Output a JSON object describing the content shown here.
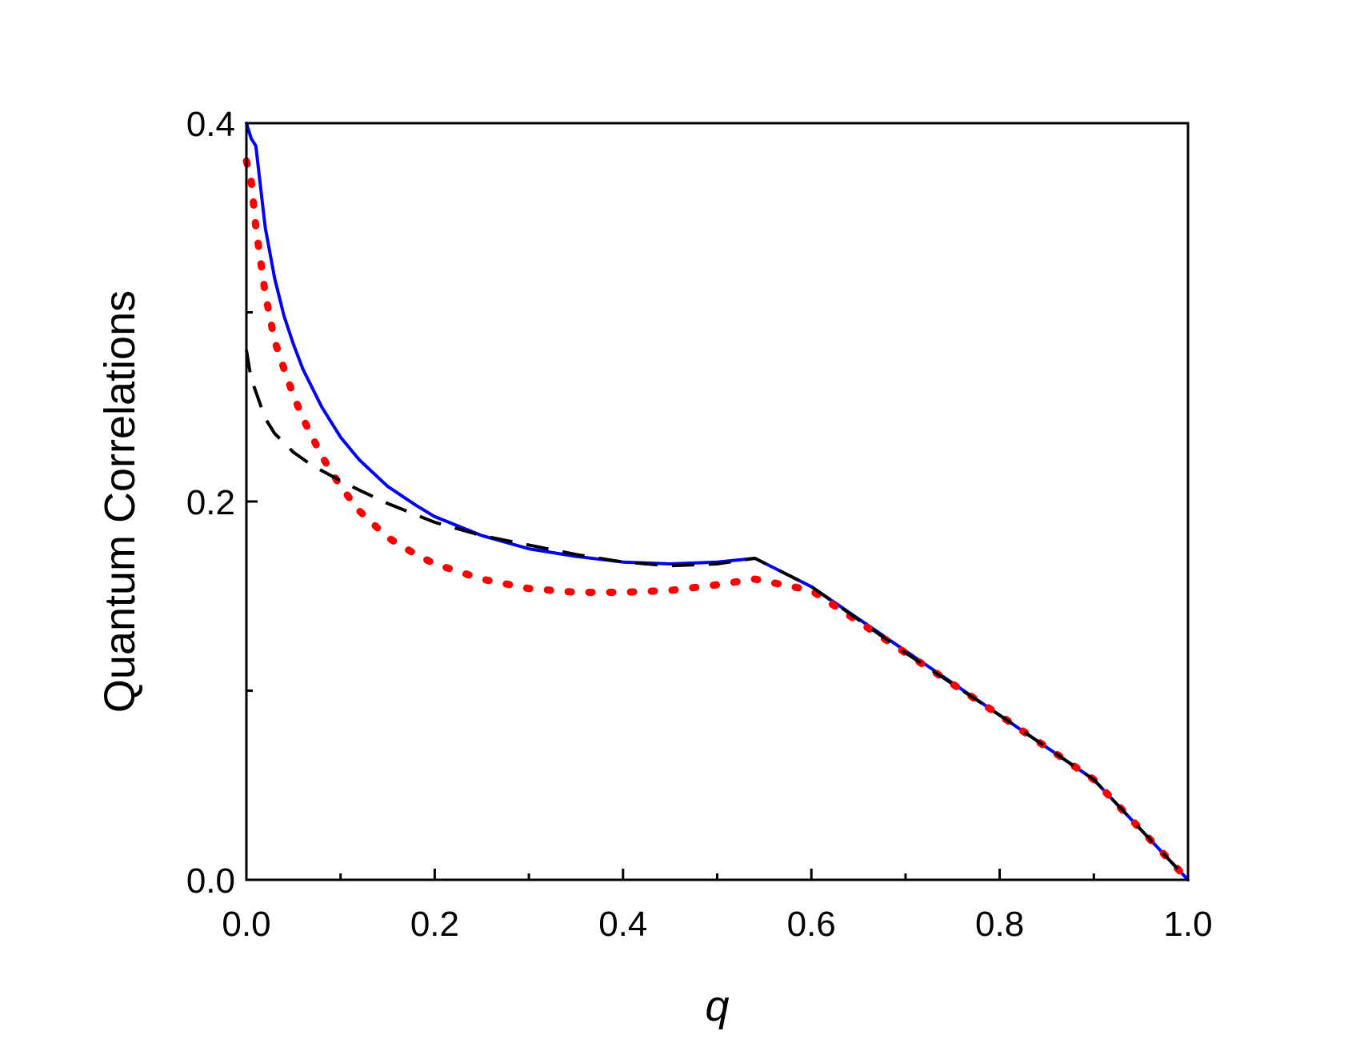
{
  "chart_data": {
    "type": "line",
    "title": "",
    "xlabel": "q",
    "ylabel": "Quantum Correlations",
    "xlim": [
      0.0,
      1.0
    ],
    "ylim": [
      0.0,
      0.4
    ],
    "x_ticks": [
      "0.0",
      "0.2",
      "0.4",
      "0.6",
      "0.8",
      "1.0"
    ],
    "x_tick_values": [
      0.0,
      0.2,
      0.4,
      0.6,
      0.8,
      1.0
    ],
    "y_ticks": [
      "0.0",
      "0.2",
      "0.4"
    ],
    "y_tick_values": [
      0.0,
      0.2,
      0.4
    ],
    "grid": false,
    "legend": "none",
    "series": [
      {
        "style": "solid",
        "color": "#0000ff",
        "x": [
          0.0,
          0.005,
          0.01,
          0.02,
          0.03,
          0.04,
          0.05,
          0.06,
          0.08,
          0.1,
          0.12,
          0.15,
          0.18,
          0.2,
          0.25,
          0.3,
          0.35,
          0.4,
          0.45,
          0.5,
          0.54,
          0.6,
          0.7,
          0.8,
          0.9,
          1.0
        ],
        "y": [
          0.4,
          0.392,
          0.388,
          0.345,
          0.318,
          0.298,
          0.283,
          0.27,
          0.25,
          0.234,
          0.222,
          0.208,
          0.198,
          0.192,
          0.182,
          0.175,
          0.171,
          0.168,
          0.167,
          0.168,
          0.17,
          0.155,
          0.121,
          0.087,
          0.053,
          0.0
        ]
      },
      {
        "style": "dotted",
        "color": "#ff0000",
        "x": [
          0.0,
          0.005,
          0.01,
          0.02,
          0.03,
          0.04,
          0.05,
          0.06,
          0.08,
          0.1,
          0.12,
          0.15,
          0.18,
          0.2,
          0.25,
          0.3,
          0.35,
          0.4,
          0.45,
          0.5,
          0.54,
          0.6,
          0.7,
          0.8,
          0.9,
          1.0
        ],
        "y": [
          0.38,
          0.37,
          0.345,
          0.31,
          0.285,
          0.27,
          0.256,
          0.244,
          0.224,
          0.208,
          0.195,
          0.181,
          0.172,
          0.167,
          0.159,
          0.154,
          0.152,
          0.152,
          0.153,
          0.156,
          0.159,
          0.153,
          0.12,
          0.087,
          0.053,
          0.0
        ]
      },
      {
        "style": "dashed",
        "color": "#000000",
        "x": [
          0.0,
          0.005,
          0.01,
          0.02,
          0.03,
          0.05,
          0.07,
          0.1,
          0.12,
          0.15,
          0.2,
          0.25,
          0.3,
          0.35,
          0.4,
          0.45,
          0.5,
          0.54,
          0.6,
          0.7,
          0.8,
          0.9,
          1.0
        ],
        "y": [
          0.28,
          0.265,
          0.258,
          0.244,
          0.236,
          0.226,
          0.219,
          0.211,
          0.206,
          0.199,
          0.189,
          0.182,
          0.177,
          0.172,
          0.168,
          0.166,
          0.167,
          0.17,
          0.155,
          0.12,
          0.087,
          0.053,
          0.0
        ]
      }
    ]
  }
}
